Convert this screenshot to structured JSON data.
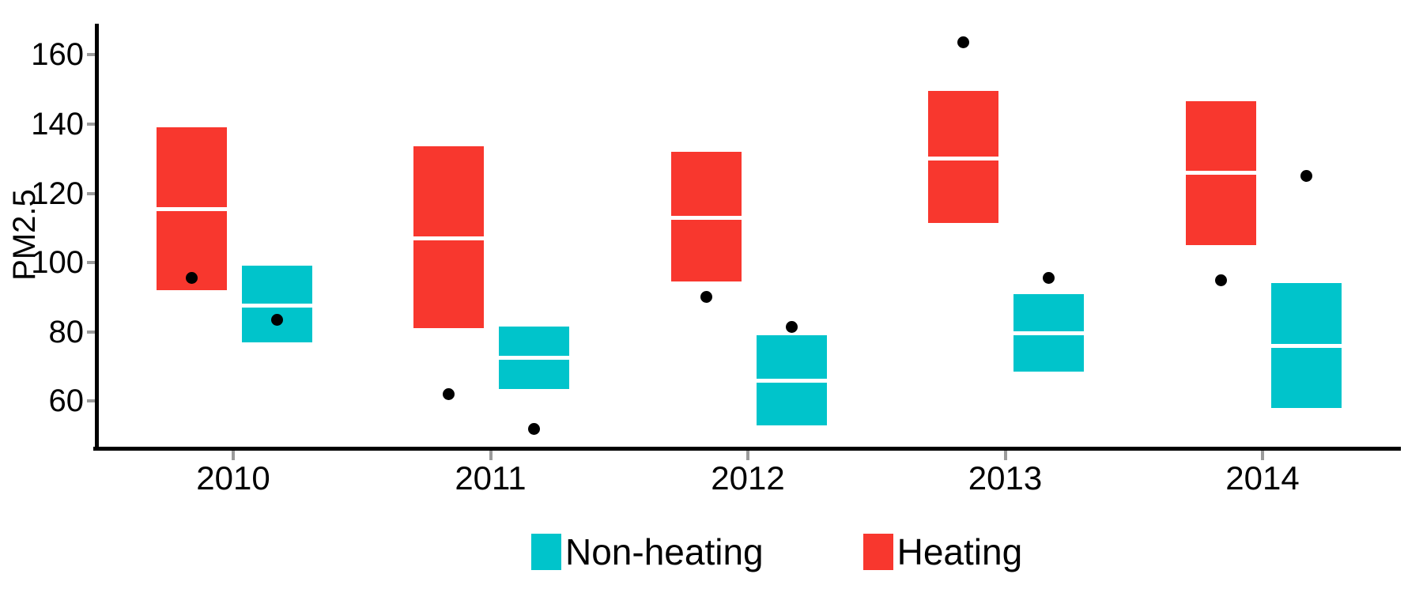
{
  "chart_data": {
    "type": "crossbar-boxplot",
    "title": "",
    "xlabel": "",
    "ylabel": "PM2.5",
    "categories": [
      "2010",
      "2011",
      "2012",
      "2013",
      "2014"
    ],
    "y_ticks": [
      60,
      80,
      100,
      120,
      140,
      160
    ],
    "ylim": [
      46,
      172
    ],
    "grid": false,
    "legend_position": "bottom-center",
    "point_color": "#000000",
    "median_line_color": "#ffffff",
    "series": [
      {
        "name": "Heating",
        "color": "#f8372e",
        "dodge": "left",
        "boxes": [
          {
            "category": "2010",
            "lower": 92,
            "middle": 115.5,
            "upper": 139
          },
          {
            "category": "2011",
            "lower": 81,
            "middle": 107,
            "upper": 133.5
          },
          {
            "category": "2012",
            "lower": 94.5,
            "middle": 113,
            "upper": 132
          },
          {
            "category": "2013",
            "lower": 111.5,
            "middle": 130,
            "upper": 149.5
          },
          {
            "category": "2014",
            "lower": 105,
            "middle": 126,
            "upper": 146.5
          }
        ],
        "points": [
          {
            "category": "2010",
            "value": 95.5
          },
          {
            "category": "2011",
            "value": 62
          },
          {
            "category": "2012",
            "value": 90
          },
          {
            "category": "2013",
            "value": 163.5
          },
          {
            "category": "2014",
            "value": 95
          }
        ]
      },
      {
        "name": "Non-heating",
        "color": "#00c4cb",
        "dodge": "right",
        "boxes": [
          {
            "category": "2010",
            "lower": 77,
            "middle": 87.5,
            "upper": 99
          },
          {
            "category": "2011",
            "lower": 63.5,
            "middle": 72.5,
            "upper": 81.5
          },
          {
            "category": "2012",
            "lower": 53,
            "middle": 66,
            "upper": 79
          },
          {
            "category": "2013",
            "lower": 68.5,
            "middle": 79.5,
            "upper": 91
          },
          {
            "category": "2014",
            "lower": 58,
            "middle": 76,
            "upper": 94
          }
        ],
        "points": [
          {
            "category": "2010",
            "value": 83.5
          },
          {
            "category": "2011",
            "value": 52
          },
          {
            "category": "2012",
            "value": 81.5
          },
          {
            "category": "2013",
            "value": 95.5
          },
          {
            "category": "2014",
            "value": 125
          }
        ]
      }
    ],
    "legend": [
      {
        "label": "Non-heating",
        "color": "#00c4cb"
      },
      {
        "label": "Heating",
        "color": "#f8372e"
      }
    ]
  }
}
